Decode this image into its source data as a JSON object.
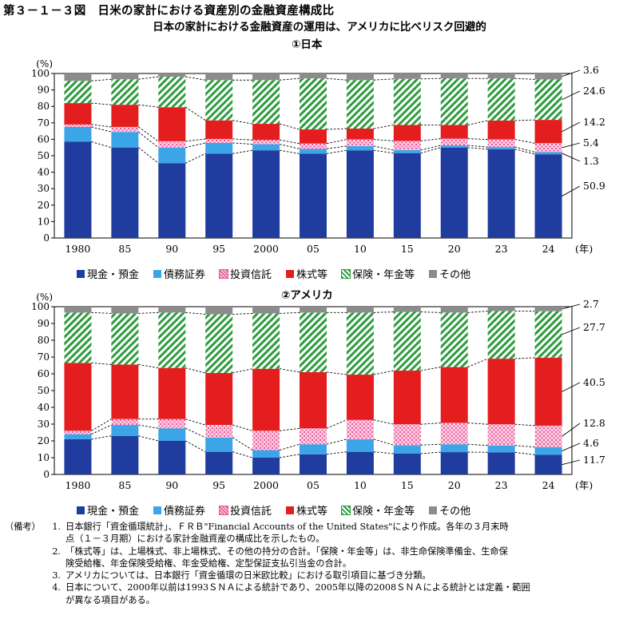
{
  "figure": {
    "title": "第３－１－３図　日米の家計における資産別の金融資産構成比",
    "subtitle": "日本の家計における金融資産の運用は、アメリカに比べリスク回避的"
  },
  "colors": {
    "cash": "#1f3c9e",
    "bonds": "#3ba5e8",
    "trusts": "#f4a9c8",
    "equities": "#e41e1e",
    "insurance": "#2e9c3e",
    "other": "#8c8c8c"
  },
  "legend": [
    {
      "key": "cash",
      "label": "現金・預金"
    },
    {
      "key": "bonds",
      "label": "債務証券"
    },
    {
      "key": "trusts",
      "label": "投資信託"
    },
    {
      "key": "equities",
      "label": "株式等"
    },
    {
      "key": "insurance",
      "label": "保険・年金等"
    },
    {
      "key": "other",
      "label": "その他"
    }
  ],
  "chart_data": [
    {
      "type": "bar",
      "stacked": true,
      "title": "①日本",
      "ylabel": "(%)",
      "xlabel": "(年)",
      "ylim": [
        0,
        100
      ],
      "yticks": [
        0,
        10,
        20,
        30,
        40,
        50,
        60,
        70,
        80,
        90,
        100
      ],
      "categories": [
        "1980",
        "85",
        "90",
        "95",
        "2000",
        "05",
        "10",
        "15",
        "20",
        "23",
        "24"
      ],
      "series": [
        {
          "key": "cash",
          "name": "現金・預金",
          "values": [
            58.5,
            55,
            45.5,
            51.3,
            53.3,
            51.3,
            53.3,
            51.6,
            55,
            54,
            50.9
          ]
        },
        {
          "key": "bonds",
          "name": "債務証券",
          "values": [
            9,
            9.5,
            9.5,
            6.5,
            3.7,
            2.9,
            2.6,
            1.8,
            1.3,
            1.3,
            1.3
          ]
        },
        {
          "key": "trusts",
          "name": "投資信託",
          "values": [
            1.5,
            3,
            3.8,
            2.4,
            2.6,
            3.2,
            4,
            5.6,
            4.1,
            4.6,
            5.4
          ]
        },
        {
          "key": "equities",
          "name": "株式等",
          "values": [
            13,
            13.5,
            20.7,
            11.3,
            9.8,
            8.6,
            6.6,
            9.7,
            8.3,
            11.5,
            14.2
          ]
        },
        {
          "key": "insurance",
          "name": "保険・年金等",
          "values": [
            13.5,
            15.5,
            18.5,
            24.5,
            26.6,
            31,
            29.5,
            28,
            28.3,
            25.6,
            24.6
          ]
        },
        {
          "key": "other",
          "name": "その他",
          "values": [
            4.5,
            3.5,
            2,
            4,
            4,
            3,
            4,
            3.3,
            3,
            3,
            3.6
          ]
        }
      ],
      "end_labels": [
        "3.6",
        "24.6",
        "14.2",
        "5.4",
        "1.3",
        "50.9"
      ]
    },
    {
      "type": "bar",
      "stacked": true,
      "title": "②アメリカ",
      "ylabel": "(%)",
      "xlabel": "(年)",
      "ylim": [
        0,
        100
      ],
      "yticks": [
        0,
        10,
        20,
        30,
        40,
        50,
        60,
        70,
        80,
        90,
        100
      ],
      "categories": [
        "1980",
        "85",
        "90",
        "95",
        "2000",
        "05",
        "10",
        "15",
        "20",
        "23",
        "24"
      ],
      "series": [
        {
          "key": "cash",
          "name": "現金・預金",
          "values": [
            21,
            23,
            20,
            13.5,
            10,
            12,
            13.5,
            12.4,
            13.3,
            13.2,
            11.7
          ]
        },
        {
          "key": "bonds",
          "name": "債務証券",
          "values": [
            3,
            6.5,
            7.5,
            8.5,
            4.5,
            6,
            7.5,
            5.1,
            4.7,
            4.1,
            4.6
          ]
        },
        {
          "key": "trusts",
          "name": "投資信託",
          "values": [
            2,
            3.5,
            5.5,
            7.5,
            11.5,
            9.5,
            11.5,
            12.4,
            12.7,
            12.6,
            12.8
          ]
        },
        {
          "key": "equities",
          "name": "株式等",
          "values": [
            40.5,
            32.5,
            30.5,
            31,
            37,
            33.5,
            27,
            32,
            33.3,
            39.1,
            40.5
          ]
        },
        {
          "key": "insurance",
          "name": "保険・年金等",
          "values": [
            30,
            30.5,
            33,
            35,
            33,
            35.5,
            37,
            35,
            32.5,
            28.4,
            27.7
          ]
        },
        {
          "key": "other",
          "name": "その他",
          "values": [
            3.5,
            4,
            3.5,
            4.5,
            4,
            3.5,
            3.5,
            3.1,
            3.5,
            2.6,
            2.7
          ]
        }
      ],
      "end_labels": [
        "2.7",
        "27.7",
        "40.5",
        "12.8",
        "4.6",
        "11.7"
      ]
    }
  ],
  "notes": {
    "head": "（備考）",
    "items": [
      {
        "num": "1.",
        "lines": [
          "日本銀行「資金循環統計」、ＦＲＢ\"Financial Accounts of the United States\"により作成。各年の３月末時",
          "点（１－３月期）における家計金融資産の構成比を示したもの。"
        ]
      },
      {
        "num": "2.",
        "lines": [
          "「株式等」は、上場株式、非上場株式、その他の持分の合計。「保険・年金等」は、非生命保険準備金、生命保",
          "険受給権、年金保険受給権、年金受給権、定型保証支払引当金の合計。"
        ]
      },
      {
        "num": "3.",
        "lines": [
          "アメリカについては、日本銀行「資金循環の日米欧比較」における取引項目に基づき分類。"
        ]
      },
      {
        "num": "4.",
        "lines": [
          "日本について、2000年以前は1993ＳＮＡによる統計であり、2005年以降の2008ＳＮＡによる統計とは定義・範囲",
          "が異なる項目がある。"
        ]
      }
    ]
  }
}
